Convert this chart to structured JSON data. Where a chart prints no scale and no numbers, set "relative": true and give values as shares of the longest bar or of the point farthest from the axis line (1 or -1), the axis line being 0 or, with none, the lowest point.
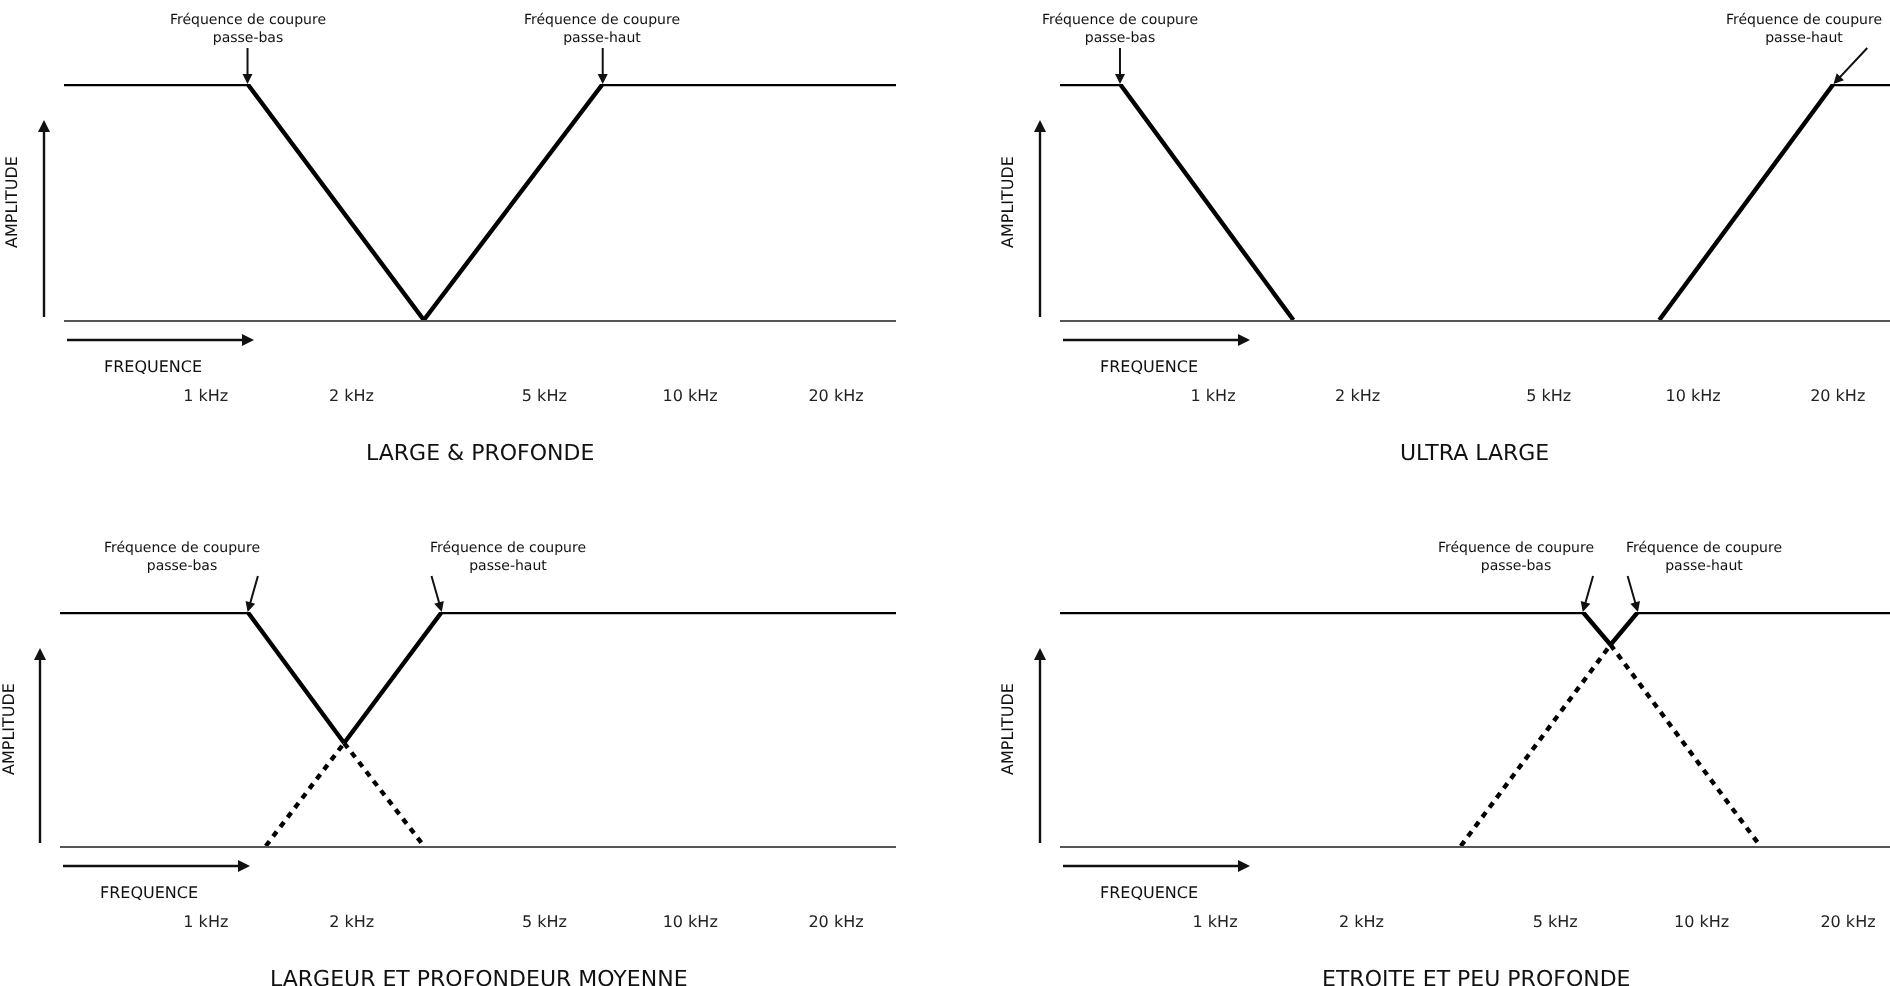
{
  "chart_data": [
    {
      "type": "line",
      "title": "LARGE & PROFONDE",
      "xlabel": "FREQUENCE",
      "ylabel": "AMPLITUDE",
      "relative": true,
      "log": "x",
      "xlim": [
        0.51,
        26.6
      ],
      "xticks": [
        {
          "value": 1,
          "label": "1 kHz"
        },
        {
          "value": 2,
          "label": "2 kHz"
        },
        {
          "value": 5,
          "label": "5 kHz"
        },
        {
          "value": 10,
          "label": "10 kHz"
        },
        {
          "value": 20,
          "label": "20 kHz"
        }
      ],
      "series": [
        {
          "color": "#000000",
          "line_style": "solid",
          "x": [
            0.51,
            1.22,
            2.82
          ],
          "values": [
            1,
            1,
            0
          ]
        },
        {
          "color": "#000000",
          "line_style": "solid",
          "x": [
            2.82,
            6.6,
            26.6
          ],
          "values": [
            0,
            1,
            1
          ]
        }
      ],
      "annotations": [
        {
          "text": "Fréquence de coupure\npasse-bas",
          "x": 1.22,
          "y": 1
        },
        {
          "text": "Fréquence de coupure\npasse-haut",
          "x": 6.6,
          "y": 1
        }
      ]
    },
    {
      "type": "line",
      "title": "ULTRA LARGE",
      "xlabel": "FREQUENCE",
      "ylabel": "AMPLITUDE",
      "relative": true,
      "log": "x",
      "xlim": [
        0.48,
        25.7
      ],
      "xticks": [
        {
          "value": 1,
          "label": "1 kHz"
        },
        {
          "value": 2,
          "label": "2 kHz"
        },
        {
          "value": 5,
          "label": "5 kHz"
        },
        {
          "value": 10,
          "label": "10 kHz"
        },
        {
          "value": 20,
          "label": "20 kHz"
        }
      ],
      "series": [
        {
          "color": "#000000",
          "line_style": "solid",
          "x": [
            0.48,
            0.64,
            1.47
          ],
          "values": [
            1,
            1,
            0
          ]
        },
        {
          "color": "#000000",
          "line_style": "solid",
          "x": [
            8.5,
            19.6,
            25.7
          ],
          "values": [
            0,
            1,
            1
          ]
        }
      ],
      "annotations": [
        {
          "text": "Fréquence de coupure\npasse-bas",
          "x": 0.64,
          "y": 1
        },
        {
          "text": "Fréquence de coupure\npasse-haut",
          "x": 19.6,
          "y": 1
        }
      ]
    },
    {
      "type": "line",
      "title": "LARGEUR ET PROFONDEUR MOYENNE",
      "xlabel": "FREQUENCE",
      "ylabel": "AMPLITUDE",
      "relative": true,
      "log": "x",
      "xlim": [
        0.5,
        26.6
      ],
      "xticks": [
        {
          "value": 1,
          "label": "1 kHz"
        },
        {
          "value": 2,
          "label": "2 kHz"
        },
        {
          "value": 5,
          "label": "5 kHz"
        },
        {
          "value": 10,
          "label": "10 kHz"
        },
        {
          "value": 20,
          "label": "20 kHz"
        }
      ],
      "series": [
        {
          "color": "#000000",
          "line_style": "solid",
          "x": [
            0.5,
            1.22,
            1.93
          ],
          "values": [
            1,
            1,
            0.44
          ]
        },
        {
          "color": "#000000",
          "line_style": "dotted",
          "x": [
            1.93,
            2.82
          ],
          "values": [
            0.44,
            0
          ]
        },
        {
          "color": "#000000",
          "line_style": "dotted",
          "x": [
            1.33,
            1.93
          ],
          "values": [
            0,
            0.44
          ]
        },
        {
          "color": "#000000",
          "line_style": "solid",
          "x": [
            1.93,
            3.07,
            26.6
          ],
          "values": [
            0.44,
            1,
            1
          ]
        }
      ],
      "annotations": [
        {
          "text": "Fréquence de coupure\npasse-bas",
          "x": 1.22,
          "y": 1
        },
        {
          "text": "Fréquence de coupure\npasse-haut",
          "x": 3.07,
          "y": 1
        }
      ]
    },
    {
      "type": "line",
      "title": "ETROITE ET PEU PROFONDE",
      "xlabel": "FREQUENCE",
      "ylabel": "AMPLITUDE",
      "relative": true,
      "log": "x",
      "xlim": [
        0.48,
        24.4
      ],
      "xticks": [
        {
          "value": 1,
          "label": "1 kHz"
        },
        {
          "value": 2,
          "label": "2 kHz"
        },
        {
          "value": 5,
          "label": "5 kHz"
        },
        {
          "value": 10,
          "label": "10 kHz"
        },
        {
          "value": 20,
          "label": "20 kHz"
        }
      ],
      "series": [
        {
          "color": "#000000",
          "line_style": "solid",
          "x": [
            0.48,
            5.7,
            6.5
          ],
          "values": [
            1,
            1,
            0.86
          ]
        },
        {
          "color": "#000000",
          "line_style": "dotted",
          "x": [
            6.5,
            13.2
          ],
          "values": [
            0.86,
            0
          ]
        },
        {
          "color": "#000000",
          "line_style": "dotted",
          "x": [
            3.2,
            6.5
          ],
          "values": [
            0,
            0.86
          ]
        },
        {
          "color": "#000000",
          "line_style": "solid",
          "x": [
            6.5,
            7.4,
            24.4
          ],
          "values": [
            0.86,
            1,
            1
          ]
        }
      ],
      "annotations": [
        {
          "text": "Fréquence de coupure\npasse-bas",
          "x": 5.7,
          "y": 1
        },
        {
          "text": "Fréquence de coupure\npasse-haut",
          "x": 7.4,
          "y": 1
        }
      ]
    }
  ]
}
